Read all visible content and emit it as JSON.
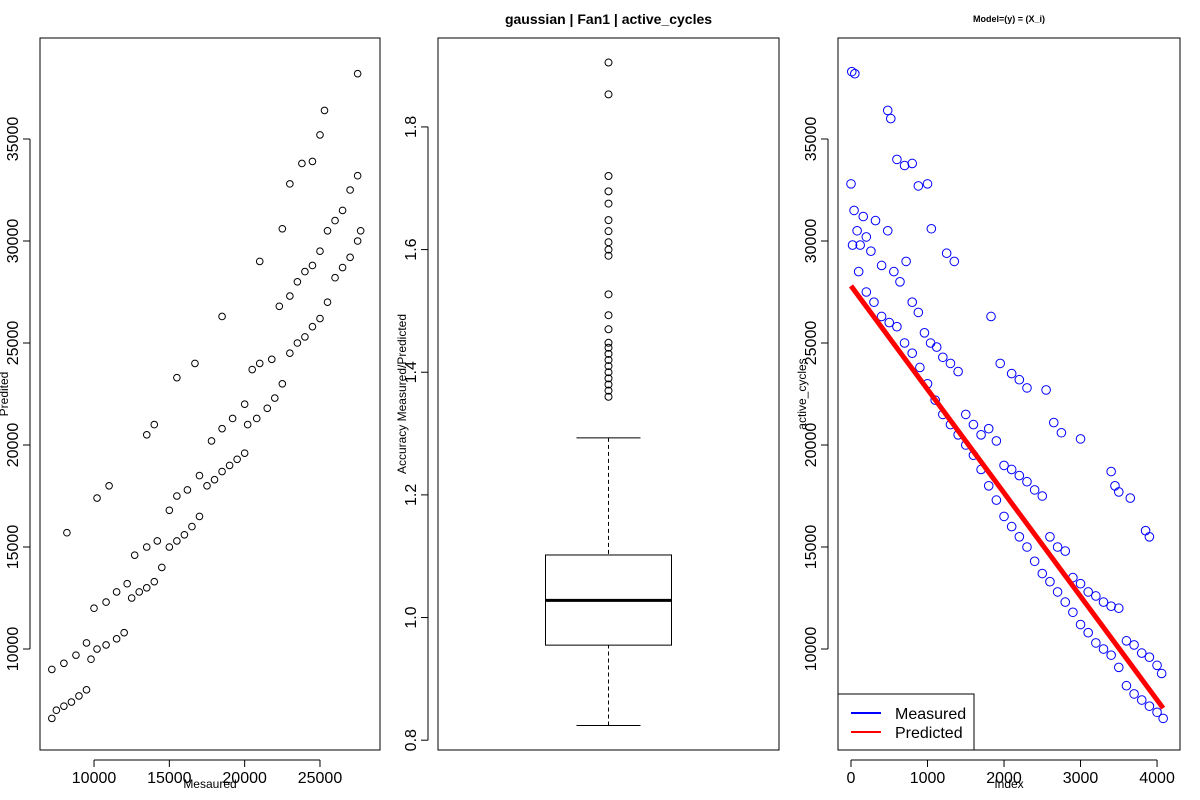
{
  "chart_data": [
    {
      "type": "scatter",
      "xlabel": "Mesaured",
      "ylabel": "Predited",
      "color": "#000000",
      "xlim": [
        6414,
        28984
      ],
      "ylim": [
        5050,
        39950
      ],
      "xticks": [
        10000,
        15000,
        20000,
        25000
      ],
      "yticks": [
        10000,
        15000,
        20000,
        25000,
        30000,
        35000
      ],
      "x": [
        7200,
        7500,
        8000,
        8500,
        9000,
        9500,
        9800,
        10200,
        10800,
        11500,
        12000,
        12500,
        13000,
        13500,
        14000,
        14500,
        15000,
        15500,
        16000,
        16500,
        17000,
        17500,
        18000,
        18500,
        19000,
        19500,
        20000,
        20200,
        20800,
        21500,
        22000,
        22500,
        23000,
        23500,
        24000,
        24500,
        25000,
        25500,
        26000,
        26500,
        27000,
        27500,
        27700,
        7200,
        8000,
        8800,
        9500,
        10000,
        10800,
        11500,
        12200,
        12700,
        13500,
        14200,
        15000,
        15500,
        16200,
        17000,
        17800,
        18500,
        19200,
        20000,
        20500,
        21000,
        21800,
        22300,
        23000,
        23500,
        24000,
        24500,
        25000,
        25500,
        26000,
        26500,
        27000,
        27500,
        8200,
        10200,
        11000,
        13500,
        14000,
        15500,
        16700,
        18500,
        21000,
        22500,
        23000,
        23800,
        24500,
        25000,
        25300,
        27500
      ],
      "values": [
        6600,
        7000,
        7200,
        7400,
        7700,
        8000,
        9500,
        10000,
        10200,
        10500,
        10800,
        12500,
        12800,
        13000,
        13300,
        14000,
        15000,
        15300,
        15600,
        16000,
        16500,
        18000,
        18300,
        18700,
        19000,
        19300,
        19600,
        21000,
        21300,
        21800,
        22300,
        23000,
        24500,
        25000,
        25300,
        25800,
        26200,
        27000,
        28200,
        28700,
        29200,
        30000,
        30500,
        9000,
        9300,
        9700,
        10300,
        12000,
        12300,
        12800,
        13200,
        14600,
        15000,
        15300,
        16800,
        17500,
        17800,
        18500,
        20200,
        20800,
        21300,
        22000,
        23700,
        24000,
        24200,
        26800,
        27300,
        28000,
        28500,
        28800,
        29500,
        30500,
        31000,
        31500,
        32500,
        33200,
        15700,
        17400,
        18000,
        20500,
        21000,
        23300,
        24000,
        26300,
        29000,
        30600,
        32800,
        33800,
        33900,
        35200,
        36400,
        38200
      ]
    },
    {
      "type": "box",
      "title": "gaussian | Fan1 | active_cycles",
      "ylabel": "Accuracy  Measured/Predicted",
      "ylim": [
        0.784,
        1.945
      ],
      "yticks": [
        0.8,
        {
          "value": 1,
          "label": "1.0"
        },
        1.2,
        1.4,
        1.6,
        1.8
      ],
      "stats": {
        "whisker_low": 0.824,
        "q1": 0.955,
        "median": 1.028,
        "q3": 1.102,
        "whisker_high": 1.293
      },
      "outliers": [
        1.905,
        1.853,
        1.72,
        1.695,
        1.675,
        1.648,
        1.63,
        1.612,
        1.6,
        1.59,
        1.527,
        1.493,
        1.47,
        1.448,
        1.44,
        1.43,
        1.42,
        1.41,
        1.4,
        1.39,
        1.38,
        1.37,
        1.36
      ]
    },
    {
      "type": "scatter",
      "title": "Model=(y) = (X_i)",
      "xlabel": "Index",
      "ylabel": "active_cycles",
      "xlim": [
        -170,
        4300
      ],
      "ylim": [
        5050,
        39950
      ],
      "xticks": [
        0,
        1000,
        2000,
        3000,
        4000
      ],
      "yticks": [
        10000,
        15000,
        20000,
        25000,
        30000,
        35000
      ],
      "legend": "bottom left",
      "series": [
        {
          "name": "Measured",
          "color": "#0000ff",
          "type": "scatter",
          "x": [
            0,
            40,
            80,
            120,
            160,
            200,
            260,
            320,
            400,
            480,
            560,
            640,
            720,
            800,
            880,
            960,
            1040,
            1120,
            1200,
            1300,
            1400,
            1500,
            1600,
            1700,
            1800,
            1900,
            2000,
            2100,
            2200,
            2300,
            2400,
            2500,
            2600,
            2700,
            2800,
            2900,
            3000,
            3100,
            3200,
            3300,
            3400,
            3500,
            3600,
            3700,
            3800,
            3900,
            4000,
            4060,
            20,
            100,
            200,
            300,
            400,
            500,
            600,
            700,
            800,
            900,
            1000,
            1100,
            1200,
            1300,
            1400,
            1500,
            1600,
            1700,
            1800,
            1900,
            2000,
            2100,
            2200,
            2300,
            2400,
            2500,
            2600,
            2700,
            2800,
            2900,
            3000,
            3100,
            3200,
            3300,
            3400,
            3500,
            3600,
            3700,
            3800,
            3900,
            4000,
            4080,
            10,
            50,
            480,
            520,
            600,
            700,
            800,
            880,
            1000,
            1050,
            1250,
            1350,
            1830,
            1950,
            2100,
            2200,
            2300,
            2550,
            2650,
            2750,
            3000,
            3400,
            3450,
            3500,
            3650,
            3850,
            3900
          ],
          "values": [
            32800,
            31500,
            30500,
            29800,
            31200,
            30200,
            29500,
            31000,
            28800,
            30500,
            28500,
            28000,
            29000,
            27000,
            26500,
            25500,
            25000,
            24800,
            24300,
            24000,
            23600,
            21500,
            21000,
            20500,
            20800,
            20200,
            19000,
            18800,
            18500,
            18200,
            17800,
            17500,
            15500,
            15000,
            14800,
            13500,
            13200,
            12800,
            12600,
            12300,
            12100,
            12000,
            10400,
            10200,
            9800,
            9600,
            9200,
            8800,
            29800,
            28500,
            27500,
            27000,
            26300,
            26000,
            25800,
            25000,
            24500,
            23800,
            23000,
            22200,
            21500,
            21000,
            20500,
            20000,
            19500,
            18800,
            18000,
            17300,
            16500,
            16000,
            15500,
            15000,
            14300,
            13700,
            13300,
            12800,
            12300,
            11800,
            11200,
            10800,
            10300,
            10000,
            9700,
            9100,
            8200,
            7800,
            7500,
            7200,
            6900,
            6600,
            38300,
            38200,
            36400,
            36000,
            34000,
            33700,
            33800,
            32700,
            32800,
            30600,
            29400,
            29000,
            26300,
            24000,
            23500,
            23200,
            22800,
            22700,
            21100,
            20600,
            20300,
            18700,
            18000,
            17700,
            17400,
            15800,
            15500
          ]
        },
        {
          "name": "Predicted",
          "color": "#ff0000",
          "type": "line",
          "x": [
            0,
            4080
          ],
          "values": [
            27800,
            7100
          ]
        }
      ]
    }
  ]
}
